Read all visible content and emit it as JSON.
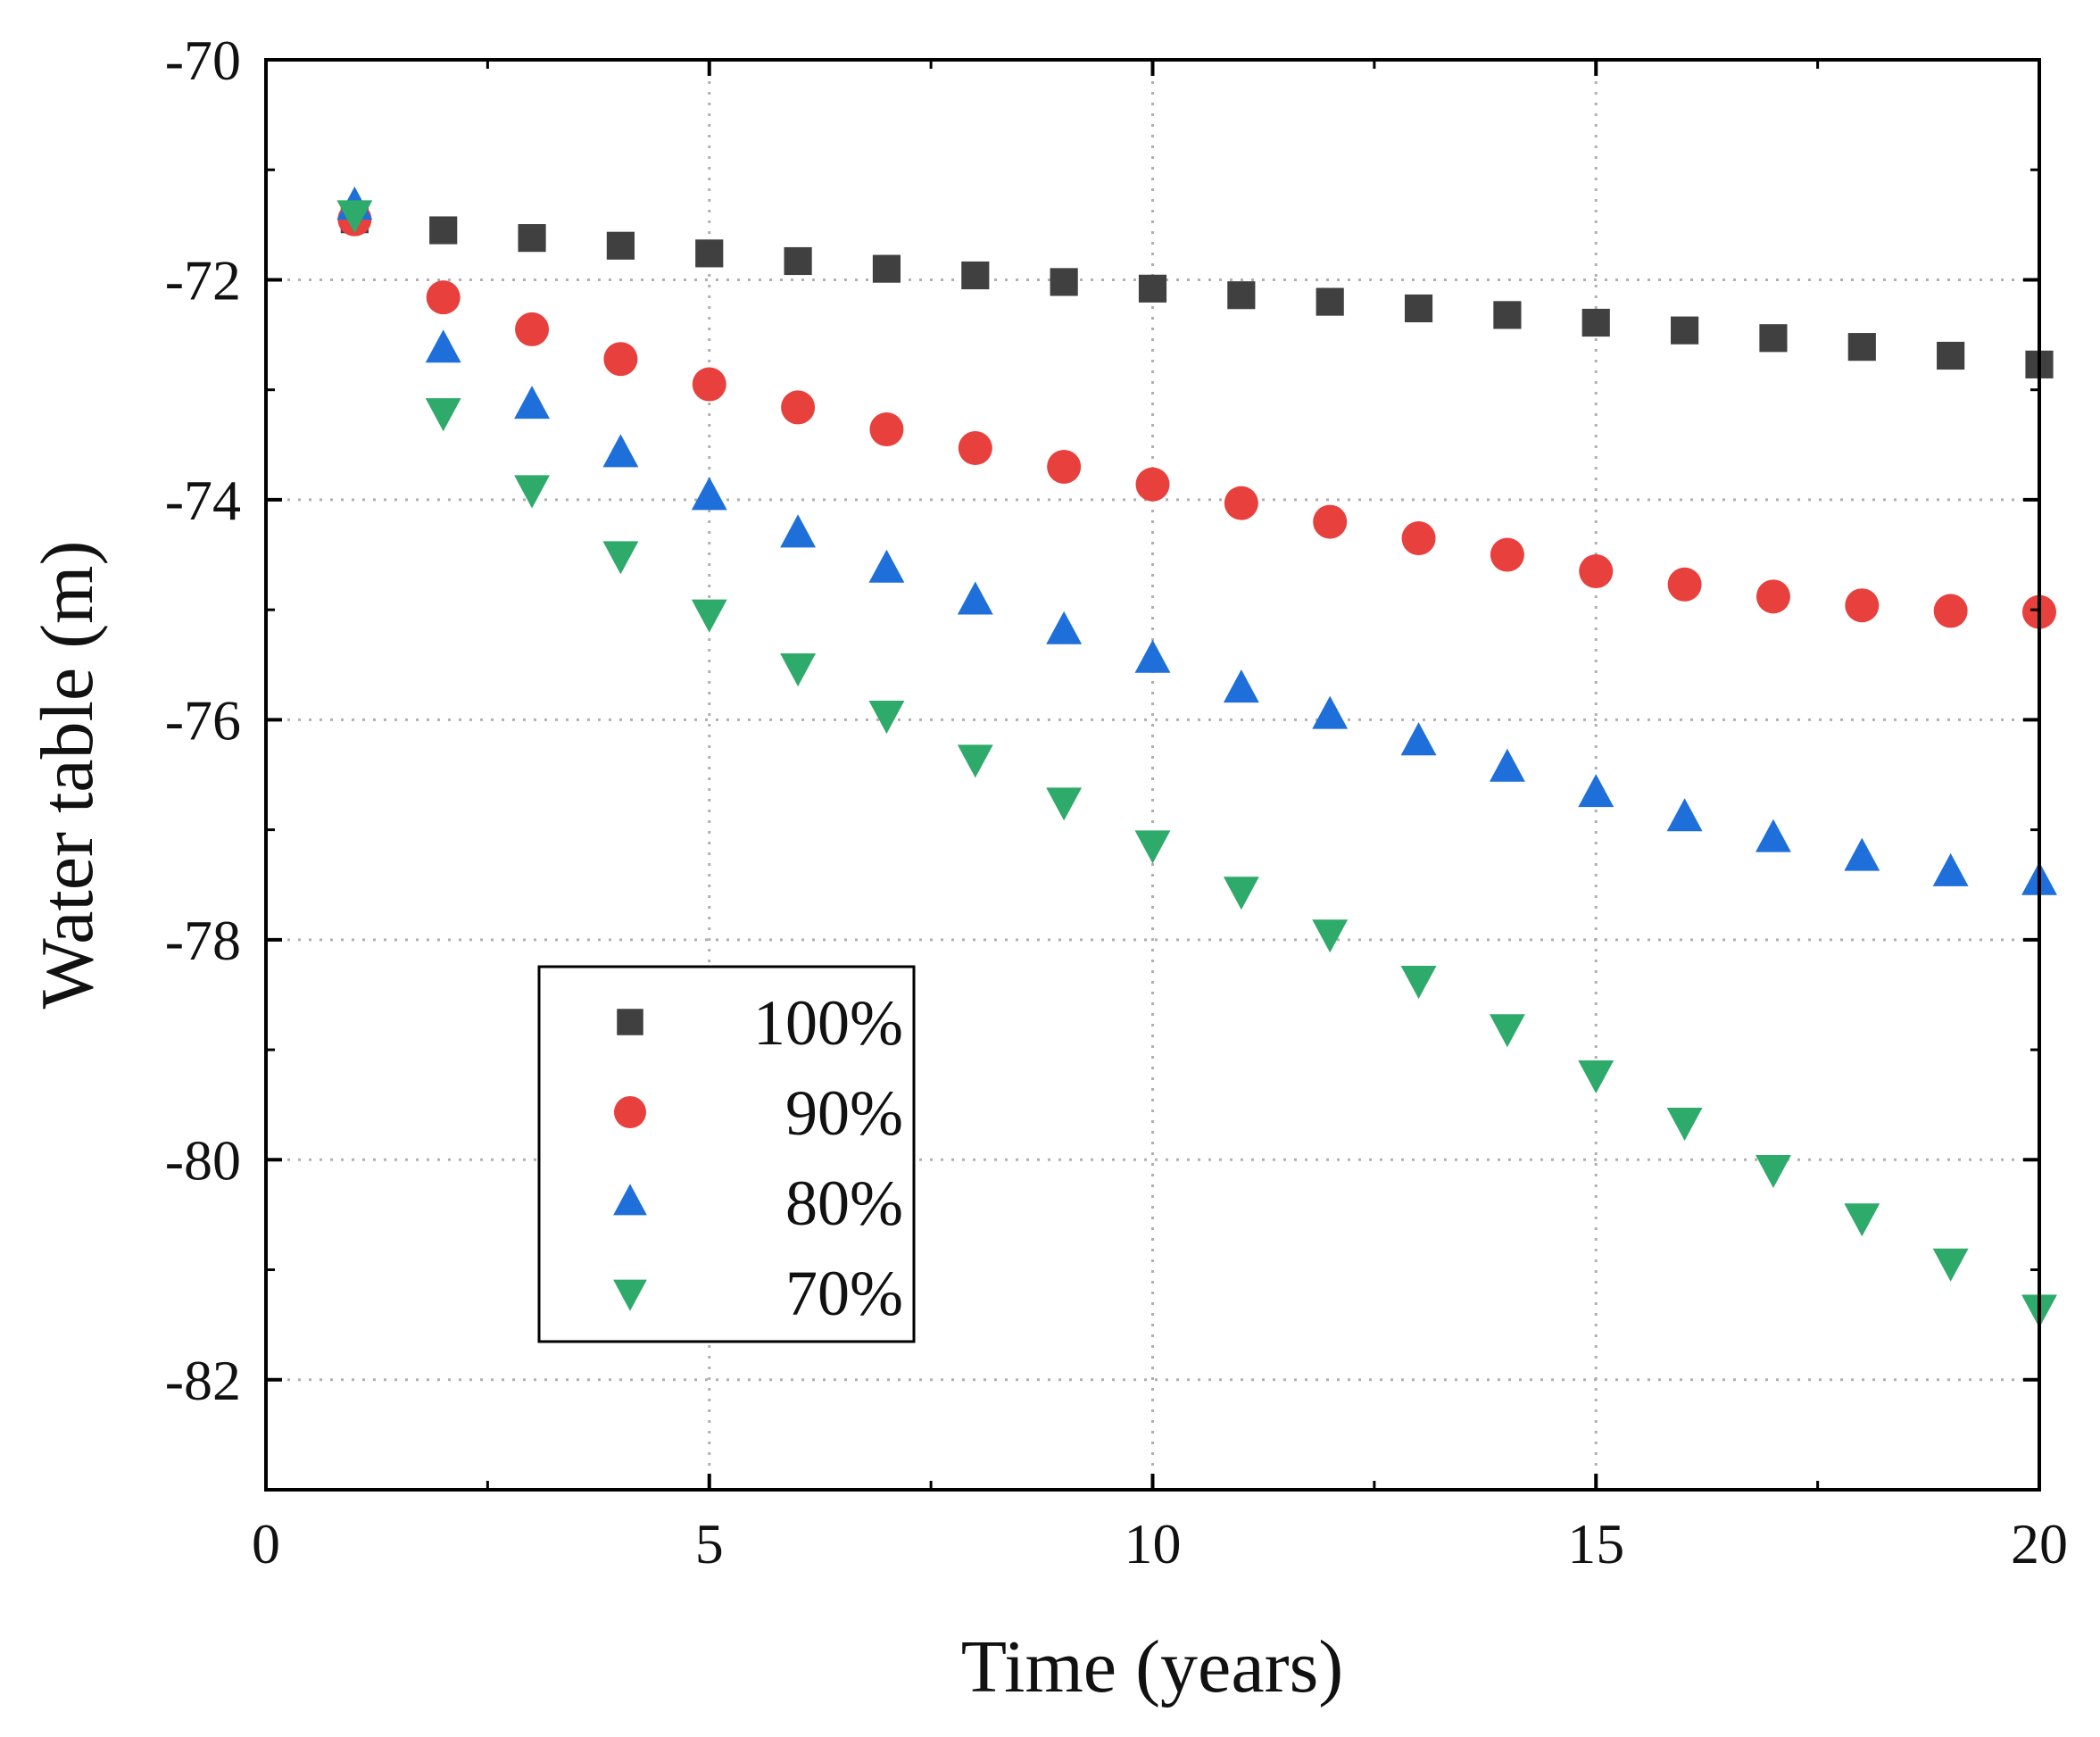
{
  "chart_data": {
    "type": "scatter",
    "title": "",
    "xlabel": "Time (years)",
    "ylabel": "Water table (m)",
    "xlim": [
      0,
      20
    ],
    "ylim": [
      -83,
      -70
    ],
    "xticks": [
      0,
      5,
      10,
      15,
      20
    ],
    "yticks": [
      -70,
      -72,
      -74,
      -76,
      -78,
      -80,
      -82
    ],
    "grid": true,
    "legend_position": "lower-left",
    "x": [
      1,
      2,
      3,
      4,
      5,
      6,
      7,
      8,
      9,
      10,
      11,
      12,
      13,
      14,
      15,
      16,
      17,
      18,
      19,
      20
    ],
    "series": [
      {
        "name": "100%",
        "marker": "square",
        "color": "#404040",
        "values": [
          -71.45,
          -71.55,
          -71.62,
          -71.69,
          -71.76,
          -71.83,
          -71.9,
          -71.96,
          -72.02,
          -72.08,
          -72.14,
          -72.2,
          -72.26,
          -72.32,
          -72.39,
          -72.46,
          -72.53,
          -72.61,
          -72.69,
          -72.77
        ]
      },
      {
        "name": "90%",
        "marker": "circle",
        "color": "#e8403d",
        "values": [
          -71.45,
          -72.16,
          -72.45,
          -72.72,
          -72.95,
          -73.16,
          -73.36,
          -73.53,
          -73.7,
          -73.86,
          -74.03,
          -74.2,
          -74.35,
          -74.5,
          -74.65,
          -74.77,
          -74.88,
          -74.96,
          -75.01,
          -75.02
        ]
      },
      {
        "name": "80%",
        "marker": "triangle-up",
        "color": "#1f6fdb",
        "values": [
          -71.33,
          -72.63,
          -73.14,
          -73.58,
          -73.97,
          -74.31,
          -74.63,
          -74.92,
          -75.19,
          -75.45,
          -75.72,
          -75.96,
          -76.2,
          -76.44,
          -76.67,
          -76.89,
          -77.08,
          -77.25,
          -77.39,
          -77.47
        ]
      },
      {
        "name": "70%",
        "marker": "triangle-down",
        "color": "#2eaa6a",
        "values": [
          -71.4,
          -73.2,
          -73.9,
          -74.5,
          -75.03,
          -75.52,
          -75.95,
          -76.35,
          -76.74,
          -77.13,
          -77.55,
          -77.94,
          -78.36,
          -78.8,
          -79.22,
          -79.65,
          -80.08,
          -80.52,
          -80.93,
          -81.35
        ]
      }
    ]
  }
}
